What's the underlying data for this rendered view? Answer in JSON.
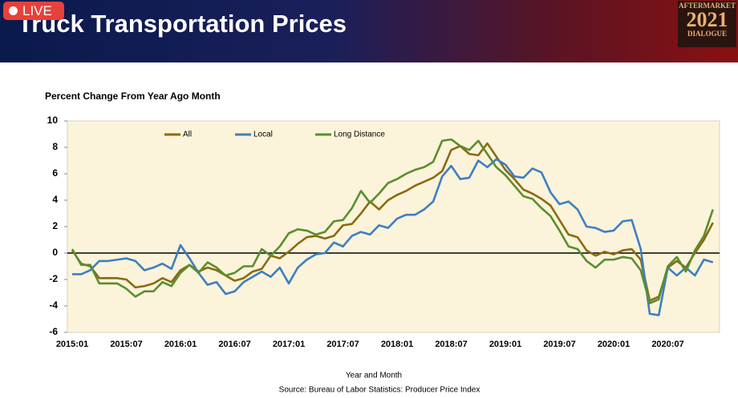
{
  "header": {
    "badge": "LIVE",
    "title": "Truck Transportation Prices",
    "logo": [
      "AFTERMARKET",
      "2021",
      "DIALOGUE"
    ]
  },
  "chart_data": {
    "type": "line",
    "title": "Percent Change From Year Ago Month",
    "x_label": "Year and Month",
    "source": "Source: Bureau of Labor Statistics: Producer Price Index",
    "categories": [
      "2015:01",
      null,
      null,
      null,
      null,
      null,
      "2015:07",
      null,
      null,
      null,
      null,
      null,
      "2016:01",
      null,
      null,
      null,
      null,
      null,
      "2016:07",
      null,
      null,
      null,
      null,
      null,
      "2017:01",
      null,
      null,
      null,
      null,
      null,
      "2017:07",
      null,
      null,
      null,
      null,
      null,
      "2018:01",
      null,
      null,
      null,
      null,
      null,
      "2018:07",
      null,
      null,
      null,
      null,
      null,
      "2019:01",
      null,
      null,
      null,
      null,
      null,
      "2019:07",
      null,
      null,
      null,
      null,
      null,
      "2020:01",
      null,
      null,
      null,
      null,
      null,
      "2020:07",
      null,
      null,
      null,
      null,
      null
    ],
    "series": [
      {
        "name": "All",
        "color": "#8a6a12",
        "values": [
          0.2,
          -0.8,
          -1.0,
          -1.9,
          -1.9,
          -1.9,
          -2.0,
          -2.6,
          -2.5,
          -2.3,
          -1.9,
          -2.2,
          -1.3,
          -0.9,
          -1.4,
          -1.1,
          -1.3,
          -1.7,
          -2.1,
          -1.9,
          -1.4,
          -1.2,
          -0.2,
          -0.4,
          0.1,
          0.7,
          1.2,
          1.3,
          1.1,
          1.3,
          2.1,
          2.2,
          3.0,
          3.9,
          3.3,
          4.0,
          4.4,
          4.7,
          5.1,
          5.4,
          5.7,
          6.2,
          7.8,
          8.1,
          7.5,
          7.4,
          8.3,
          7.3,
          6.3,
          5.6,
          4.8,
          4.5,
          4.1,
          3.6,
          2.5,
          1.4,
          1.2,
          0.2,
          -0.2,
          0.1,
          -0.1,
          0.2,
          0.3,
          -0.5,
          -3.6,
          -3.3,
          -1.1,
          -0.6,
          -1.1,
          0.0,
          1.0,
          2.3
        ]
      },
      {
        "name": "Local",
        "color": "#3d7fc1",
        "values": [
          -1.6,
          -1.6,
          -1.3,
          -0.6,
          -0.6,
          -0.5,
          -0.4,
          -0.6,
          -1.3,
          -1.1,
          -0.8,
          -1.2,
          0.6,
          -0.4,
          -1.5,
          -2.4,
          -2.2,
          -3.1,
          -2.9,
          -2.2,
          -1.8,
          -1.4,
          -1.8,
          -1.1,
          -2.3,
          -1.1,
          -0.5,
          -0.1,
          0.0,
          0.8,
          0.5,
          1.3,
          1.6,
          1.4,
          2.1,
          1.9,
          2.6,
          2.9,
          2.9,
          3.3,
          3.9,
          5.8,
          6.6,
          5.6,
          5.7,
          7.0,
          6.5,
          7.1,
          6.7,
          5.8,
          5.7,
          6.4,
          6.1,
          4.6,
          3.7,
          3.9,
          3.3,
          2.0,
          1.9,
          1.6,
          1.7,
          2.4,
          2.5,
          0.3,
          -4.6,
          -4.7,
          -1.1,
          -1.7,
          -1.1,
          -1.7,
          -0.5,
          -0.7
        ]
      },
      {
        "name": "Long Distance",
        "color": "#5a8e2f",
        "values": [
          0.3,
          -0.9,
          -0.9,
          -2.3,
          -2.3,
          -2.3,
          -2.7,
          -3.3,
          -2.9,
          -2.9,
          -2.2,
          -2.5,
          -1.5,
          -0.9,
          -1.5,
          -0.7,
          -1.1,
          -1.7,
          -1.5,
          -1.0,
          -1.0,
          0.3,
          -0.2,
          0.5,
          1.5,
          1.8,
          1.7,
          1.4,
          1.6,
          2.4,
          2.5,
          3.4,
          4.7,
          3.8,
          4.5,
          5.3,
          5.6,
          6.0,
          6.3,
          6.5,
          6.9,
          8.5,
          8.6,
          8.1,
          7.8,
          8.5,
          7.5,
          6.5,
          5.9,
          5.1,
          4.3,
          4.1,
          3.4,
          2.8,
          1.7,
          0.5,
          0.3,
          -0.6,
          -1.1,
          -0.5,
          -0.5,
          -0.3,
          -0.4,
          -1.3,
          -3.8,
          -3.5,
          -1.0,
          -0.3,
          -1.4,
          0.2,
          1.3,
          3.3
        ]
      }
    ],
    "ylim": [
      -6,
      10
    ],
    "yticks": [
      -6,
      -4,
      -2,
      0,
      2,
      4,
      6,
      8,
      10
    ],
    "grid": false,
    "legend": "top"
  }
}
